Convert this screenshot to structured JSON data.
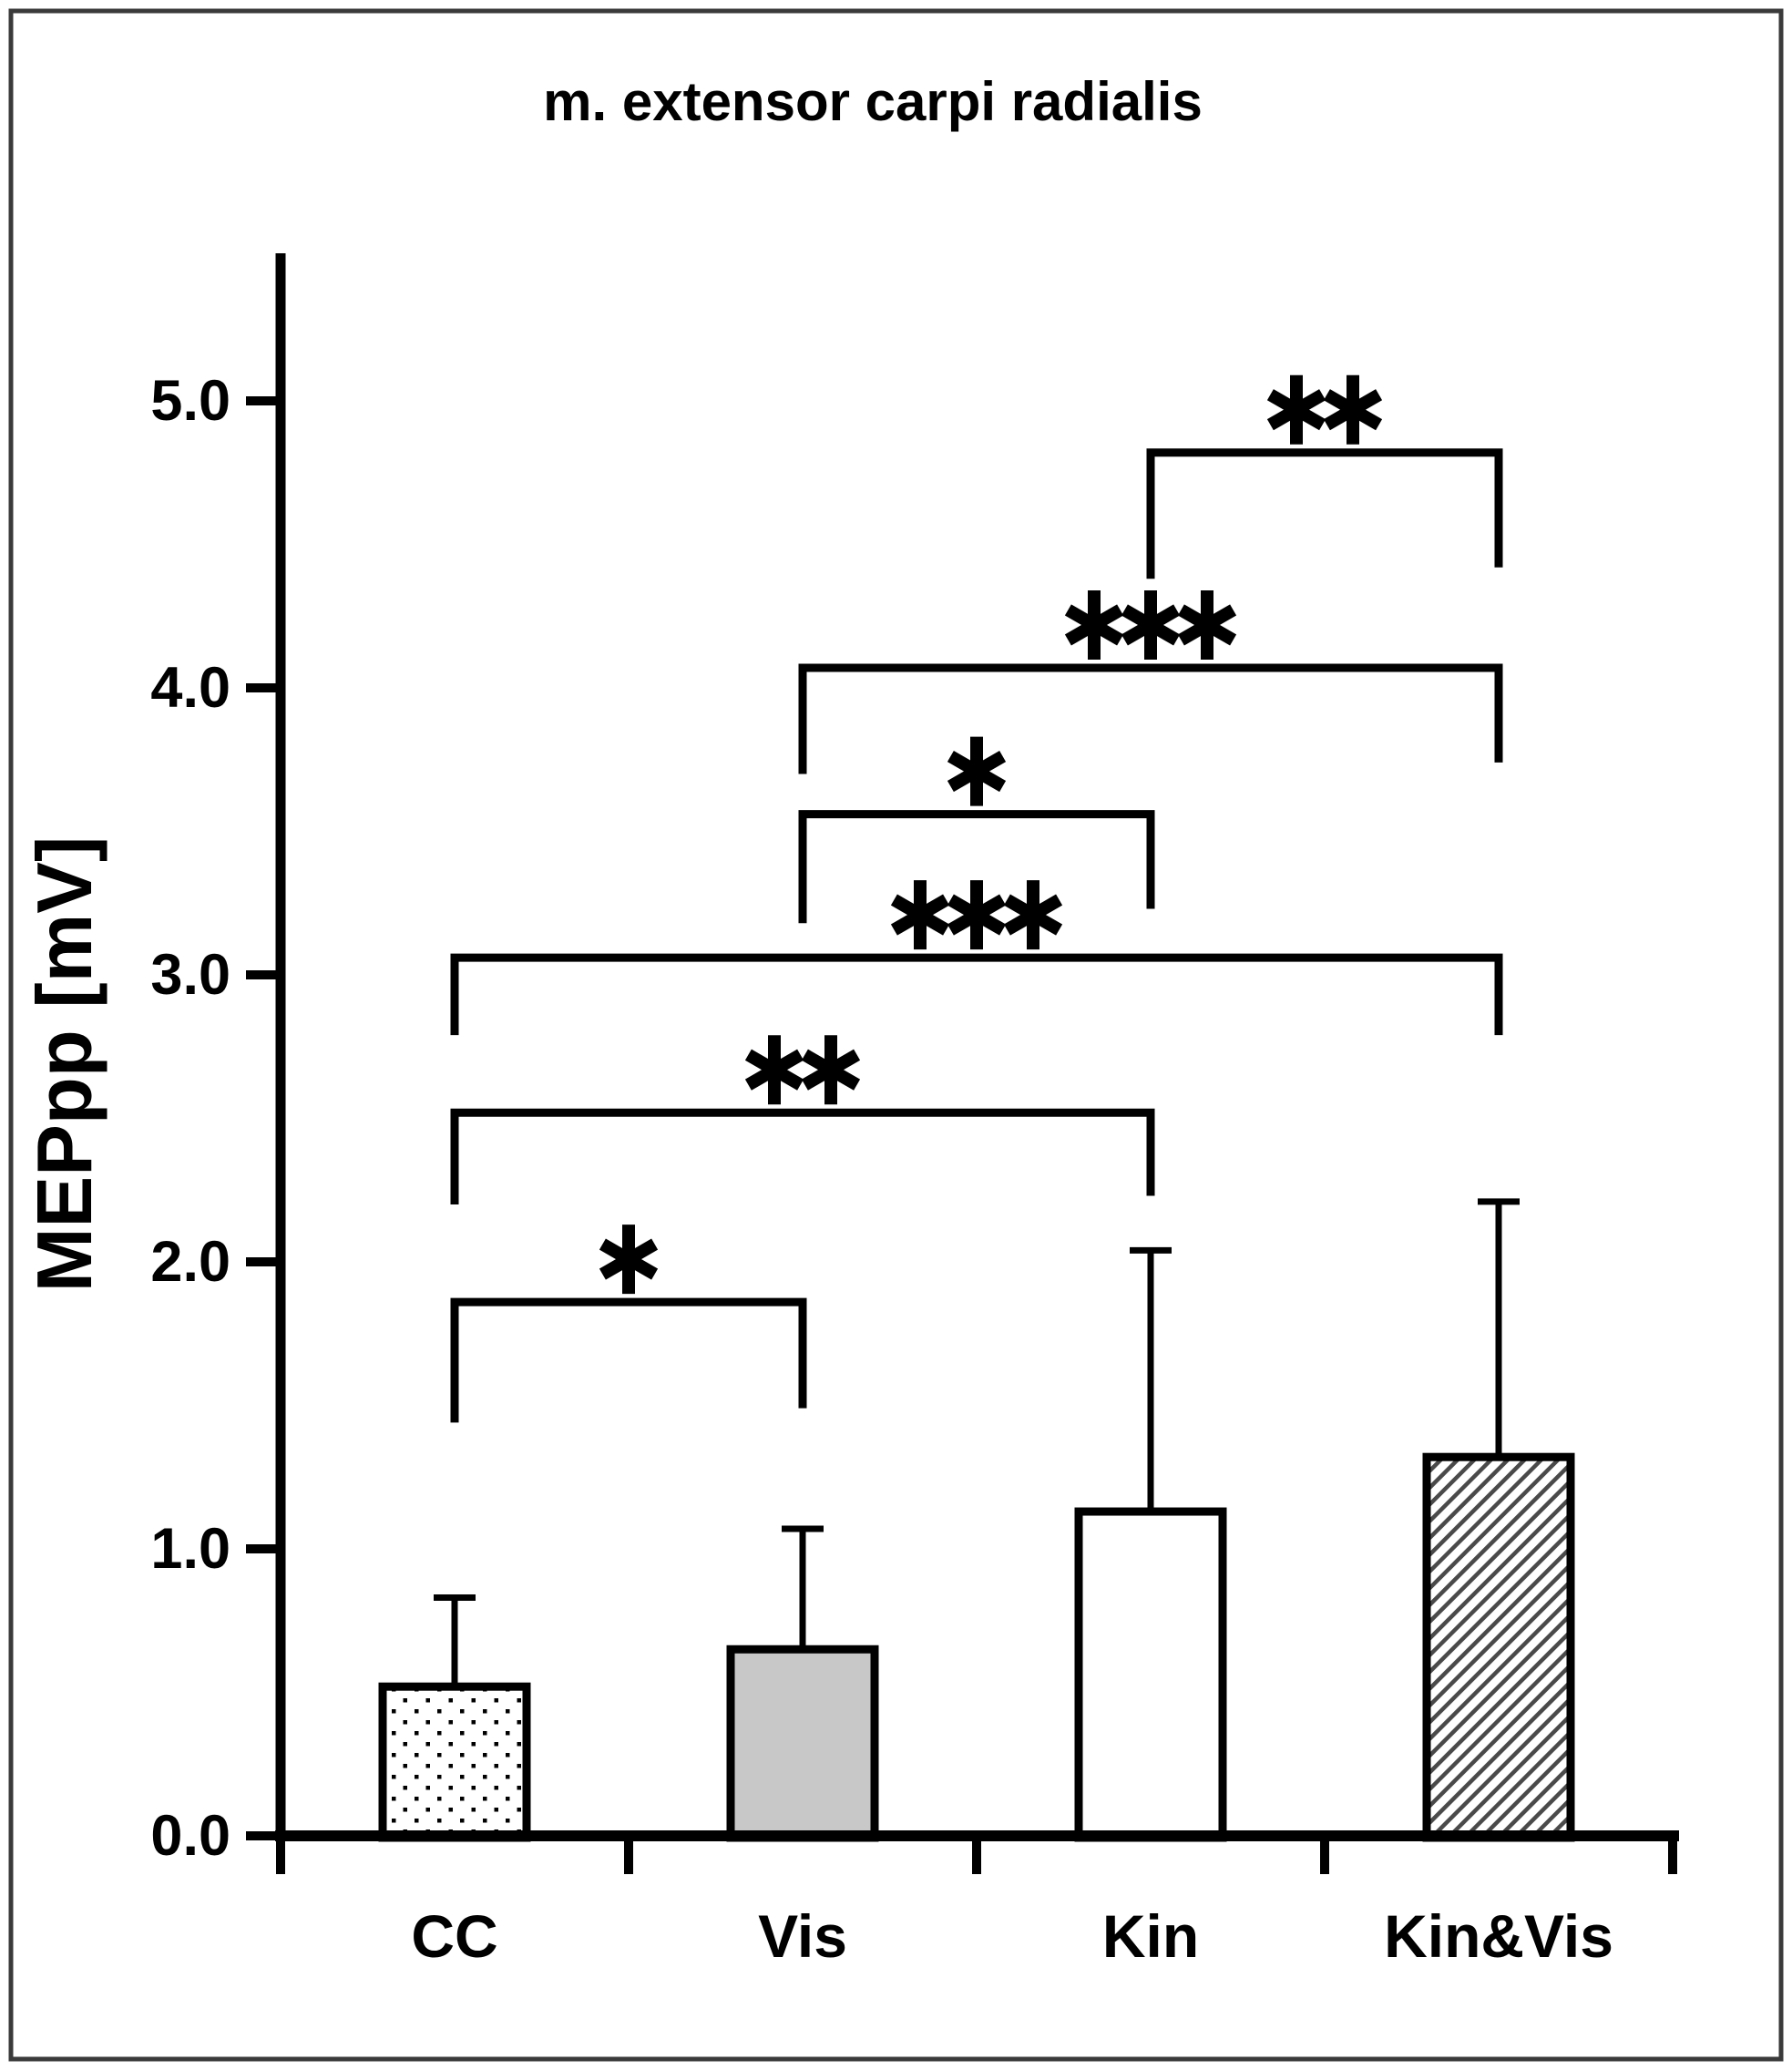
{
  "figure": {
    "title": "m. extensor carpi radialis",
    "y_axis_label": "MEPpp [mV]",
    "y_tick_labels": [
      "0.0",
      "1.0",
      "2.0",
      "3.0",
      "4.0",
      "5.0"
    ],
    "x_category_labels": [
      "CC",
      "Vis",
      "Kin",
      "Kin&Vis"
    ]
  },
  "colors": {
    "ink": "#000000",
    "border": "#3a3a3a",
    "vis_bar_fill": "#c8c8c8",
    "hatch_line": "#4a4a4a",
    "background": "#ffffff"
  },
  "chart_data": {
    "type": "bar",
    "title": "m. extensor carpi radialis",
    "xlabel": "",
    "ylabel": "MEPpp [mV]",
    "categories": [
      "CC",
      "Vis",
      "Kin",
      "Kin&Vis"
    ],
    "values": [
      0.52,
      0.65,
      1.13,
      1.32
    ],
    "error_upper_tops": [
      0.83,
      1.07,
      2.04,
      2.21
    ],
    "ylim": [
      0,
      5.5
    ],
    "yticks": [
      0.0,
      1.0,
      2.0,
      3.0,
      4.0,
      5.0
    ],
    "grid": false,
    "legend": false,
    "bar_styles": [
      "dotted",
      "solid-gray",
      "plain-white",
      "diagonal-hatch"
    ],
    "significance_brackets": [
      {
        "from": "CC",
        "to": "Vis",
        "label": "*",
        "y": 1.86,
        "leg_left": 1.44,
        "leg_right": 1.49
      },
      {
        "from": "CC",
        "to": "Kin",
        "label": "**",
        "y": 2.52,
        "leg_left": 2.2,
        "leg_right": 2.23
      },
      {
        "from": "CC",
        "to": "Kin&Vis",
        "label": "***",
        "y": 3.06,
        "leg_left": 2.79,
        "leg_right": 2.79
      },
      {
        "from": "Vis",
        "to": "Kin",
        "label": "*",
        "y": 3.56,
        "leg_left": 3.18,
        "leg_right": 3.23
      },
      {
        "from": "Vis",
        "to": "Kin&Vis",
        "label": "***",
        "y": 4.07,
        "leg_left": 3.7,
        "leg_right": 3.74
      },
      {
        "from": "Kin",
        "to": "Kin&Vis",
        "label": "**",
        "y": 4.82,
        "leg_left": 4.38,
        "leg_right": 4.42
      }
    ]
  }
}
